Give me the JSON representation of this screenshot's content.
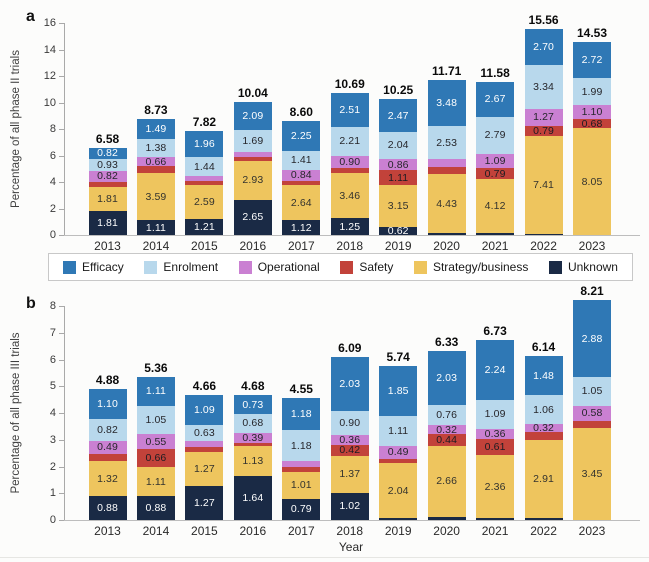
{
  "figure": {
    "panel_a_label": "a",
    "panel_b_label": "b",
    "legend": [
      {
        "key": "efficacy",
        "label": "Efficacy",
        "color": "#2f78b5"
      },
      {
        "key": "enrolment",
        "label": "Enrolment",
        "color": "#b8d8ec"
      },
      {
        "key": "operational",
        "label": "Operational",
        "color": "#ca80d2"
      },
      {
        "key": "safety",
        "label": "Safety",
        "color": "#c2423a"
      },
      {
        "key": "strategy",
        "label": "Strategy/business",
        "color": "#eec55e"
      },
      {
        "key": "unknown",
        "label": "Unknown",
        "color": "#1a2a45"
      }
    ],
    "label_text_colors": {
      "efficacy": "#ffffff",
      "enrolment": "#26262b",
      "operational": "#26262b",
      "safety": "#1c1c22",
      "strategy": "#33332e",
      "unknown": "#ffffff"
    }
  },
  "chart_data": [
    {
      "type": "bar",
      "stacked": true,
      "panel": "a",
      "ylabel": "Percentage of all phase II trials",
      "xlabel": "",
      "ylim": [
        0,
        16
      ],
      "ytick_step": 2,
      "grid": false,
      "legend_position": "below-panel-a",
      "categories": [
        "2013",
        "2014",
        "2015",
        "2016",
        "2017",
        "2018",
        "2019",
        "2020",
        "2021",
        "2022",
        "2023"
      ],
      "totals": [
        "6.58",
        "8.73",
        "7.82",
        "10.04",
        "8.60",
        "10.69",
        "10.25",
        "11.71",
        "11.58",
        "15.56",
        "14.53"
      ],
      "series": [
        {
          "name": "Efficacy",
          "key": "efficacy",
          "values": [
            0.82,
            1.49,
            1.96,
            2.09,
            2.25,
            2.51,
            2.47,
            3.48,
            2.67,
            2.7,
            2.72
          ],
          "labels": [
            "0.82",
            "1.49",
            "1.96",
            "2.09",
            "2.25",
            "2.51",
            "2.47",
            "3.48",
            "2.67",
            "2.70",
            "2.72"
          ]
        },
        {
          "name": "Enrolment",
          "key": "enrolment",
          "values": [
            0.93,
            1.38,
            1.44,
            1.69,
            1.41,
            2.21,
            2.04,
            2.53,
            2.79,
            3.34,
            1.99
          ],
          "labels": [
            "0.93",
            "1.38",
            "1.44",
            "1.69",
            "1.41",
            "2.21",
            "2.04",
            "2.53",
            "2.79",
            "3.34",
            "1.99"
          ]
        },
        {
          "name": "Operational",
          "key": "operational",
          "values": [
            0.82,
            0.66,
            0.35,
            0.35,
            0.84,
            0.9,
            0.86,
            0.6,
            1.09,
            1.27,
            1.1
          ],
          "labels": [
            "0.82",
            "0.66",
            null,
            null,
            "0.84",
            "0.90",
            "0.86",
            null,
            "1.09",
            "1.27",
            "1.10"
          ]
        },
        {
          "name": "Safety",
          "key": "safety",
          "values": [
            0.39,
            0.5,
            0.27,
            0.33,
            0.34,
            0.36,
            1.11,
            0.52,
            0.79,
            0.79,
            0.68
          ],
          "labels": [
            null,
            null,
            null,
            null,
            null,
            null,
            "1.11",
            null,
            "0.79",
            "0.79",
            "0.68"
          ]
        },
        {
          "name": "Strategy/business",
          "key": "strategy",
          "values": [
            1.81,
            3.59,
            2.59,
            2.93,
            2.64,
            3.46,
            3.15,
            4.43,
            4.12,
            7.41,
            8.05
          ],
          "labels": [
            "1.81",
            "3.59",
            "2.59",
            "2.93",
            "2.64",
            "3.46",
            "3.15",
            "4.43",
            "4.12",
            "7.41",
            "8.05"
          ]
        },
        {
          "name": "Unknown",
          "key": "unknown",
          "values": [
            1.81,
            1.11,
            1.21,
            2.65,
            1.12,
            1.25,
            0.62,
            0.15,
            0.12,
            0.05,
            0.0
          ],
          "labels": [
            "1.81",
            "1.11",
            "1.21",
            "2.65",
            "1.12",
            "1.25",
            "0.62",
            null,
            null,
            null,
            null
          ]
        }
      ]
    },
    {
      "type": "bar",
      "stacked": true,
      "panel": "b",
      "ylabel": "Percentage of all phase III trials",
      "xlabel": "Year",
      "ylim": [
        0,
        8
      ],
      "ytick_step": 1,
      "grid": false,
      "categories": [
        "2013",
        "2014",
        "2015",
        "2016",
        "2017",
        "2018",
        "2019",
        "2020",
        "2021",
        "2022",
        "2023"
      ],
      "totals": [
        "4.88",
        "5.36",
        "4.66",
        "4.68",
        "4.55",
        "6.09",
        "5.74",
        "6.33",
        "6.73",
        "6.14",
        "8.21"
      ],
      "series": [
        {
          "name": "Efficacy",
          "key": "efficacy",
          "values": [
            1.1,
            1.11,
            1.09,
            0.73,
            1.18,
            2.03,
            1.85,
            2.03,
            2.24,
            1.48,
            2.88
          ],
          "labels": [
            "1.10",
            "1.11",
            "1.09",
            "0.73",
            "1.18",
            "2.03",
            "1.85",
            "2.03",
            "2.24",
            "1.48",
            "2.88"
          ]
        },
        {
          "name": "Enrolment",
          "key": "enrolment",
          "values": [
            0.82,
            1.05,
            0.63,
            0.68,
            1.18,
            0.9,
            1.11,
            0.76,
            1.09,
            1.06,
            1.05
          ],
          "labels": [
            "0.82",
            "1.05",
            "0.63",
            "0.68",
            "1.18",
            "0.90",
            "1.11",
            "0.76",
            "1.09",
            "1.06",
            "1.05"
          ]
        },
        {
          "name": "Operational",
          "key": "operational",
          "values": [
            0.49,
            0.55,
            0.22,
            0.39,
            0.22,
            0.36,
            0.49,
            0.32,
            0.36,
            0.32,
            0.58
          ],
          "labels": [
            "0.49",
            "0.55",
            null,
            "0.39",
            null,
            "0.36",
            "0.49",
            "0.32",
            "0.36",
            "0.32",
            "0.58"
          ]
        },
        {
          "name": "Safety",
          "key": "safety",
          "values": [
            0.27,
            0.66,
            0.18,
            0.11,
            0.17,
            0.42,
            0.17,
            0.44,
            0.61,
            0.3,
            0.25
          ],
          "labels": [
            null,
            "0.66",
            null,
            null,
            null,
            "0.42",
            null,
            "0.44",
            "0.61",
            null,
            null
          ]
        },
        {
          "name": "Strategy/business",
          "key": "strategy",
          "values": [
            1.32,
            1.11,
            1.27,
            1.13,
            1.01,
            1.37,
            2.04,
            2.66,
            2.36,
            2.91,
            3.45
          ],
          "labels": [
            "1.32",
            "1.11",
            "1.27",
            "1.13",
            "1.01",
            "1.37",
            "2.04",
            "2.66",
            "2.36",
            "2.91",
            "3.45"
          ]
        },
        {
          "name": "Unknown",
          "key": "unknown",
          "values": [
            0.88,
            0.88,
            1.27,
            1.64,
            0.79,
            1.02,
            0.08,
            0.12,
            0.07,
            0.07,
            0.0
          ],
          "labels": [
            "0.88",
            "0.88",
            "1.27",
            "1.64",
            "0.79",
            "1.02",
            null,
            null,
            null,
            null,
            null
          ]
        }
      ]
    }
  ]
}
